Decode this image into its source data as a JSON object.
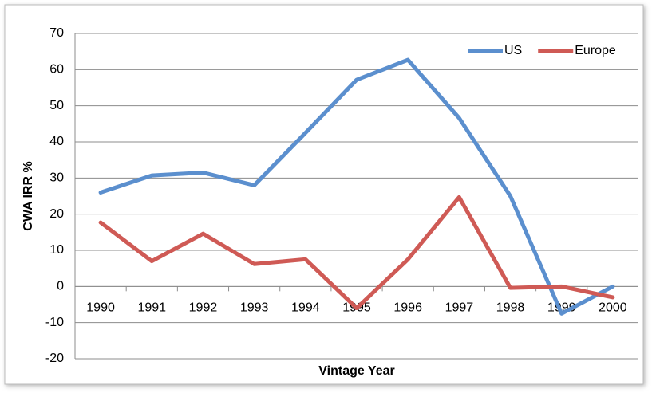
{
  "chart_data": {
    "type": "line",
    "x_label": "Vintage Year",
    "y_label": "CWA IRR %",
    "categories": [
      "1990",
      "1991",
      "1992",
      "1993",
      "1994",
      "1995",
      "1996",
      "1997",
      "1998",
      "1999",
      "2000"
    ],
    "series": [
      {
        "name": "US",
        "color": "#5b8fce",
        "values": [
          26,
          30.7,
          31.5,
          28,
          42.5,
          57.2,
          62.7,
          46.6,
          25,
          -7.5,
          0
        ]
      },
      {
        "name": "Europe",
        "color": "#cf5a55",
        "values": [
          17.7,
          7,
          14.6,
          6.2,
          7.5,
          -6,
          7.5,
          24.7,
          -0.4,
          0,
          -3
        ]
      }
    ],
    "ylim": [
      -20,
      70
    ],
    "yticks": [
      -20,
      -10,
      0,
      10,
      20,
      30,
      40,
      50,
      60,
      70
    ],
    "grid": true,
    "legend": "top-right"
  }
}
